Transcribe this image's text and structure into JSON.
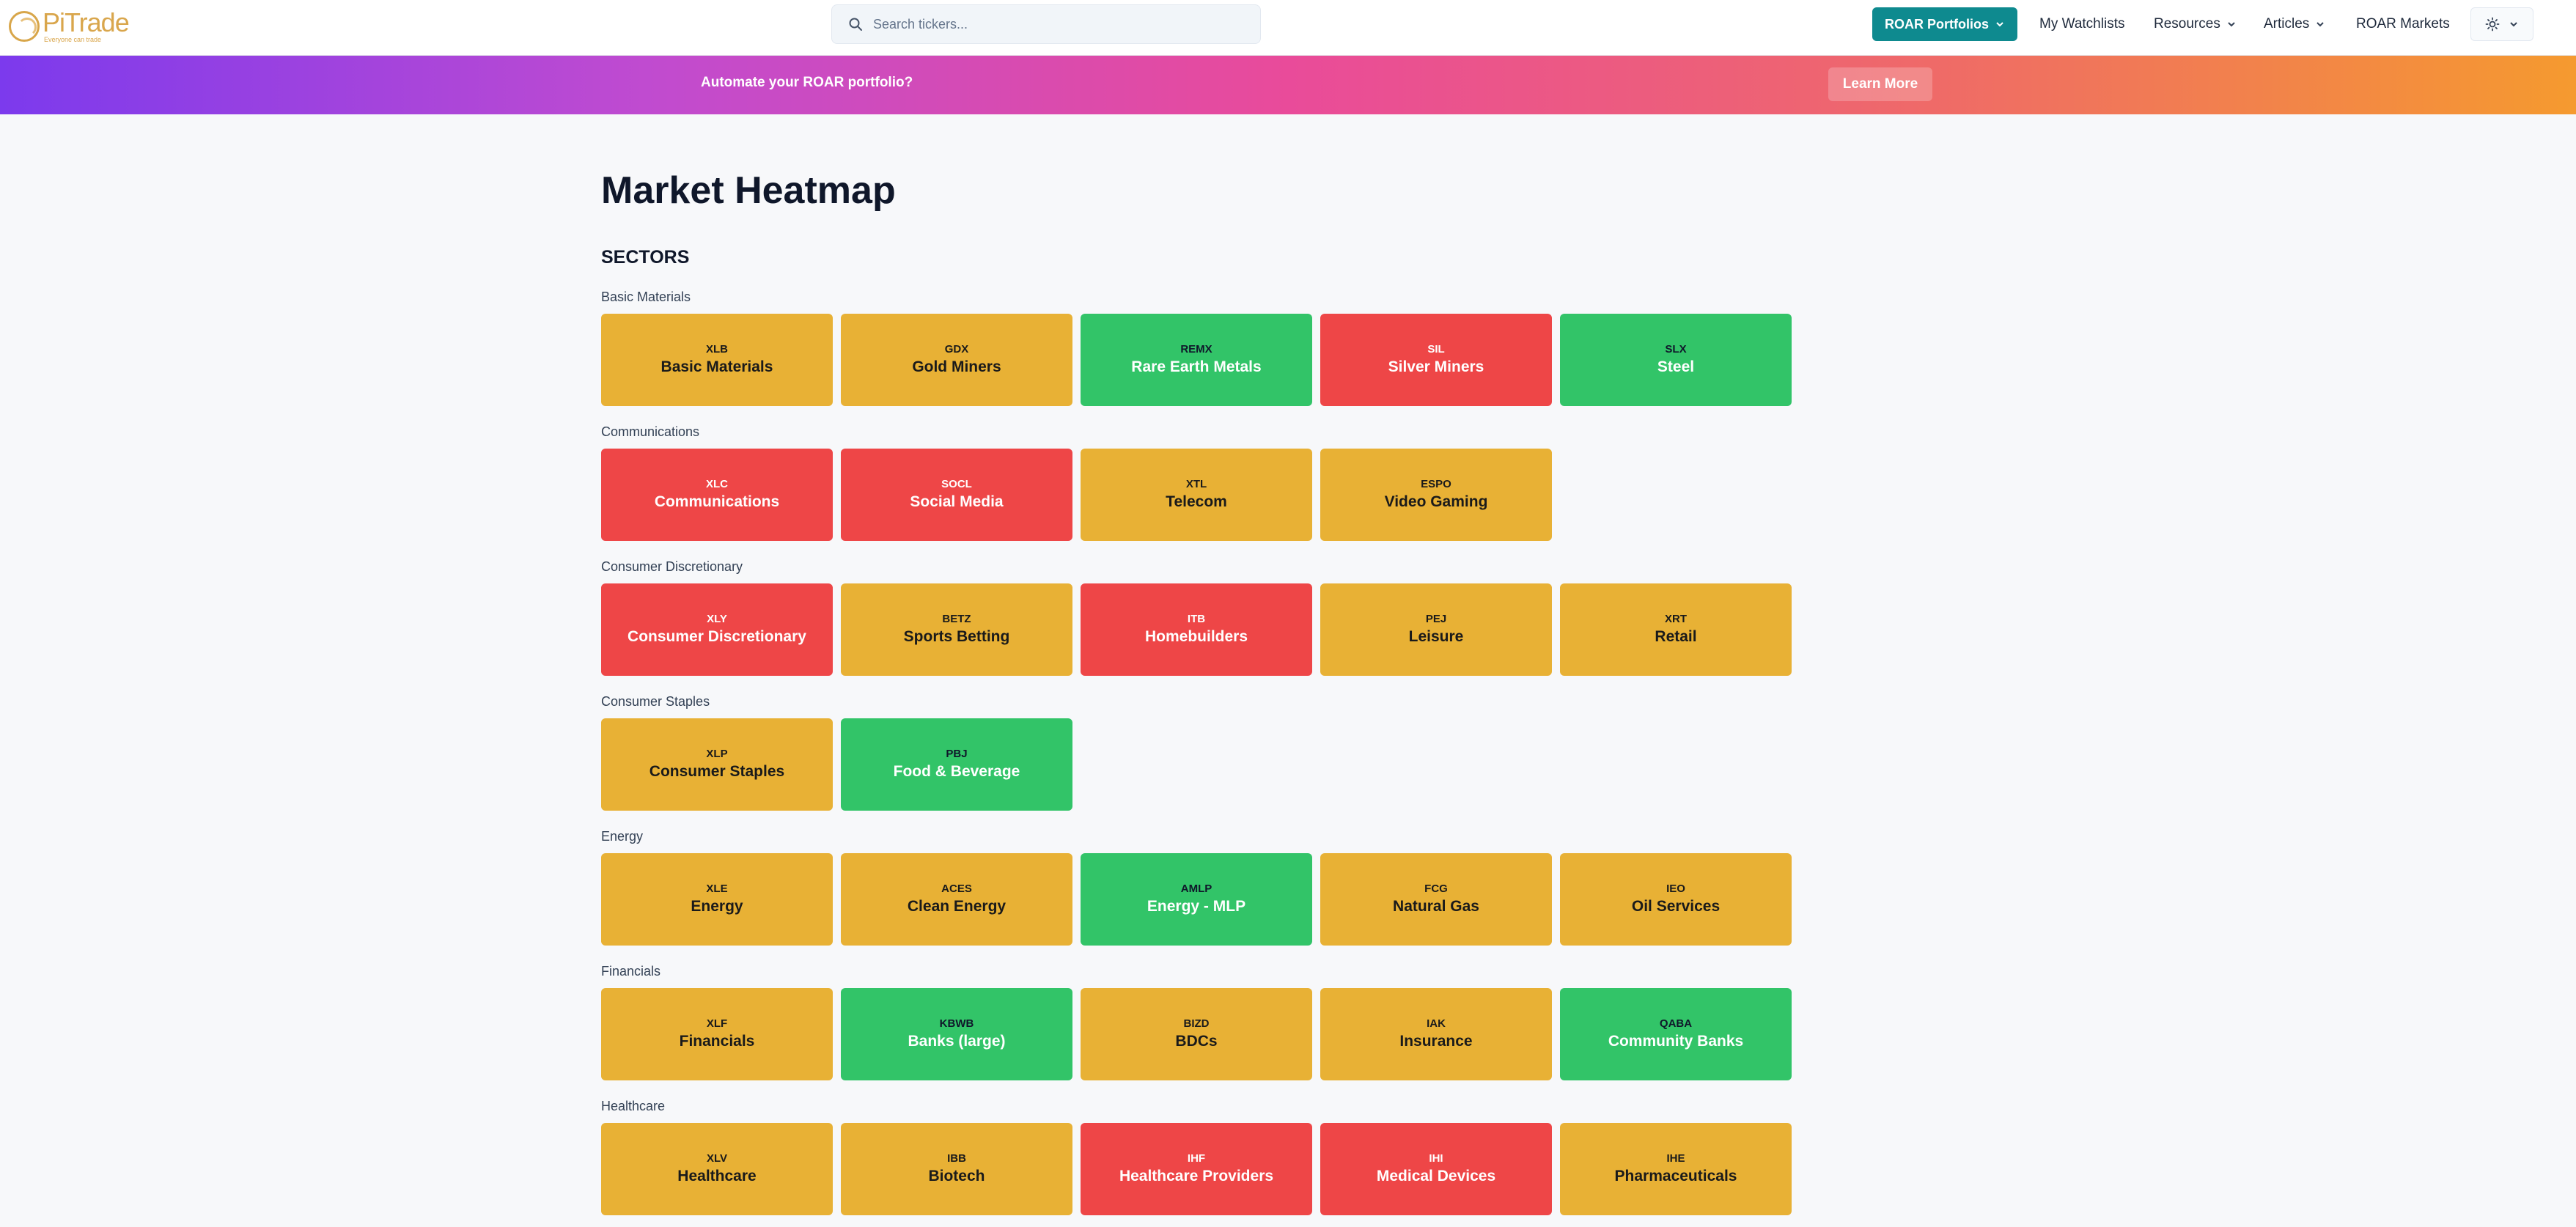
{
  "header": {
    "logo_title": "PiTrade",
    "logo_tagline": "Everyone can trade",
    "search_placeholder": "Search tickers...",
    "roar_button": "ROAR Portfolios",
    "nav": [
      "My Watchlists",
      "Resources",
      "Articles",
      "ROAR Markets"
    ]
  },
  "banner": {
    "text": "Automate your ROAR portfolio?",
    "button": "Learn More"
  },
  "page_title": "Market Heatmap",
  "section_title": "SECTORS",
  "colors": {
    "yellow": "#e8b135",
    "green": "#32c468",
    "red": "#ee4647"
  },
  "groups": [
    {
      "label": "Basic Materials",
      "tiles": [
        {
          "ticker": "XLB",
          "name": "Basic Materials",
          "status": "yellow"
        },
        {
          "ticker": "GDX",
          "name": "Gold Miners",
          "status": "yellow"
        },
        {
          "ticker": "REMX",
          "name": "Rare Earth Metals",
          "status": "green"
        },
        {
          "ticker": "SIL",
          "name": "Silver Miners",
          "status": "red"
        },
        {
          "ticker": "SLX",
          "name": "Steel",
          "status": "green"
        }
      ]
    },
    {
      "label": "Communications",
      "tiles": [
        {
          "ticker": "XLC",
          "name": "Communications",
          "status": "red"
        },
        {
          "ticker": "SOCL",
          "name": "Social Media",
          "status": "red"
        },
        {
          "ticker": "XTL",
          "name": "Telecom",
          "status": "yellow"
        },
        {
          "ticker": "ESPO",
          "name": "Video Gaming",
          "status": "yellow"
        }
      ]
    },
    {
      "label": "Consumer Discretionary",
      "tiles": [
        {
          "ticker": "XLY",
          "name": "Consumer Discretionary",
          "status": "red"
        },
        {
          "ticker": "BETZ",
          "name": "Sports Betting",
          "status": "yellow"
        },
        {
          "ticker": "ITB",
          "name": "Homebuilders",
          "status": "red"
        },
        {
          "ticker": "PEJ",
          "name": "Leisure",
          "status": "yellow"
        },
        {
          "ticker": "XRT",
          "name": "Retail",
          "status": "yellow"
        }
      ]
    },
    {
      "label": "Consumer Staples",
      "tiles": [
        {
          "ticker": "XLP",
          "name": "Consumer Staples",
          "status": "yellow"
        },
        {
          "ticker": "PBJ",
          "name": "Food & Beverage",
          "status": "green"
        }
      ]
    },
    {
      "label": "Energy",
      "tiles": [
        {
          "ticker": "XLE",
          "name": "Energy",
          "status": "yellow"
        },
        {
          "ticker": "ACES",
          "name": "Clean Energy",
          "status": "yellow"
        },
        {
          "ticker": "AMLP",
          "name": "Energy - MLP",
          "status": "green"
        },
        {
          "ticker": "FCG",
          "name": "Natural Gas",
          "status": "yellow"
        },
        {
          "ticker": "IEO",
          "name": "Oil Services",
          "status": "yellow"
        }
      ]
    },
    {
      "label": "Financials",
      "tiles": [
        {
          "ticker": "XLF",
          "name": "Financials",
          "status": "yellow"
        },
        {
          "ticker": "KBWB",
          "name": "Banks (large)",
          "status": "green"
        },
        {
          "ticker": "BIZD",
          "name": "BDCs",
          "status": "yellow"
        },
        {
          "ticker": "IAK",
          "name": "Insurance",
          "status": "yellow"
        },
        {
          "ticker": "QABA",
          "name": "Community Banks",
          "status": "green"
        }
      ]
    },
    {
      "label": "Healthcare",
      "tiles": [
        {
          "ticker": "XLV",
          "name": "Healthcare",
          "status": "yellow"
        },
        {
          "ticker": "IBB",
          "name": "Biotech",
          "status": "yellow"
        },
        {
          "ticker": "IHF",
          "name": "Healthcare Providers",
          "status": "red"
        },
        {
          "ticker": "IHI",
          "name": "Medical Devices",
          "status": "red"
        },
        {
          "ticker": "IHE",
          "name": "Pharmaceuticals",
          "status": "yellow"
        }
      ]
    }
  ]
}
